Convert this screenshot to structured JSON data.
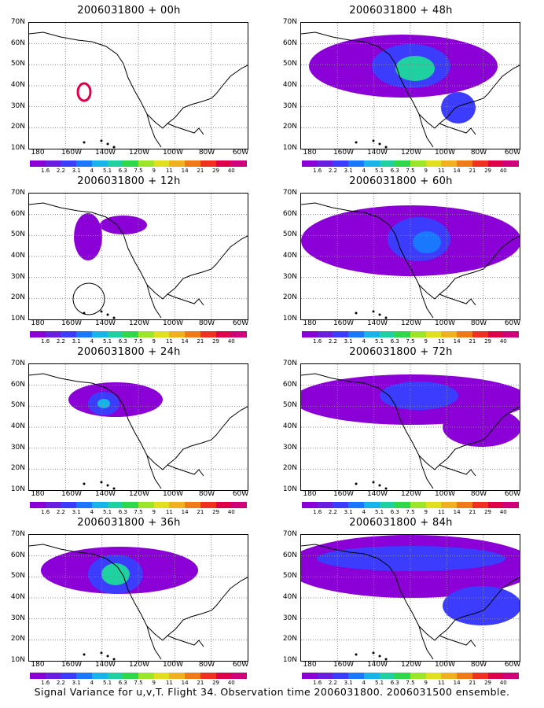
{
  "panels": [
    {
      "title": "2006031800 + 00h"
    },
    {
      "title": "2006031800 + 48h"
    },
    {
      "title": "2006031800 + 12h"
    },
    {
      "title": "2006031800 + 60h"
    },
    {
      "title": "2006031800 + 24h"
    },
    {
      "title": "2006031800 + 72h"
    },
    {
      "title": "2006031800 + 36h"
    },
    {
      "title": "2006031800 + 84h"
    }
  ],
  "axes": {
    "lat_labels": [
      "70N",
      "60N",
      "50N",
      "40N",
      "30N",
      "20N",
      "10N"
    ],
    "lon_labels": [
      "180",
      "160W",
      "140W",
      "120W",
      "100W",
      "80W",
      "60W"
    ]
  },
  "colorbar": {
    "labels": [
      "1.6",
      "2.2",
      "3.1",
      "4",
      "5.1",
      "6.3",
      "7.5",
      "9",
      "11",
      "14",
      "21",
      "29",
      "40"
    ],
    "colors": [
      "#8a00d6",
      "#6a1fe0",
      "#3c3cff",
      "#1a78ff",
      "#16b4e8",
      "#1fd0a0",
      "#2fd84a",
      "#9be628",
      "#e0e020",
      "#f0b020",
      "#f07a18",
      "#f03020",
      "#e0004a",
      "#d0007a"
    ]
  },
  "footer": "Signal Variance for u,v,T. Flight 34. Observation time 2006031800. 2006031500 ensemble."
}
